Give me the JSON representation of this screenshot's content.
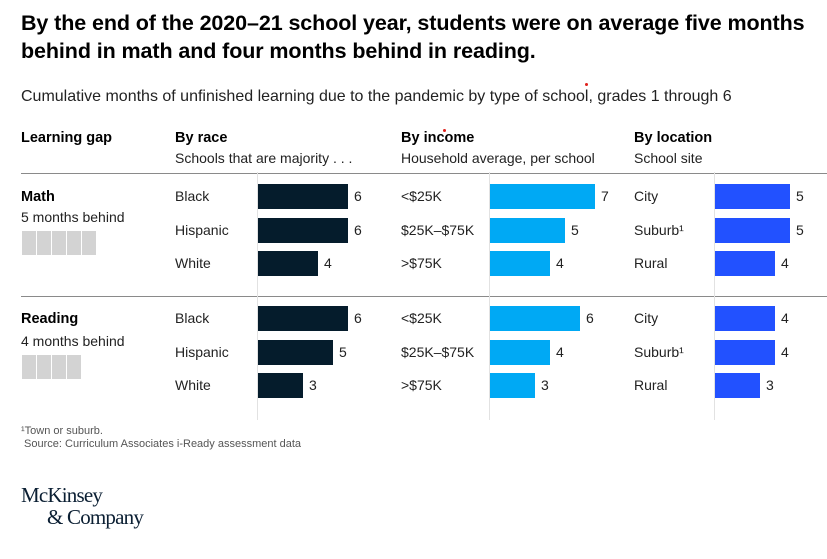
{
  "title": "By the end of the 2020–21 school year, students were on average five months behind in math and four months behind in reading.",
  "subtitle": "Cumulative months of unfinished learning due to the pandemic by type of school, grades 1 through 6",
  "columns": {
    "gap": {
      "header": "Learning gap"
    },
    "race": {
      "header": "By race",
      "subheader": "Schools that are majority . . ."
    },
    "income": {
      "header": "By income",
      "subheader": "Household average, per school"
    },
    "location": {
      "header": "By location",
      "subheader": "School site"
    }
  },
  "colors": {
    "race": "#051c2c",
    "income": "#00a9f4",
    "location": "#2251ff",
    "gap_square": "#d3d3d3"
  },
  "chart_data": {
    "type": "bar",
    "orientation": "horizontal",
    "title": "By the end of the 2020–21 school year, students were on average five months behind in math and four months behind in reading.",
    "subtitle": "Cumulative months of unfinished learning due to the pandemic by type of school, grades 1 through 6",
    "unit": "months",
    "xlim": [
      0,
      7
    ],
    "grid": false,
    "panels": [
      {
        "name": "Math",
        "summary": "5 months behind",
        "summary_value": 5,
        "groups": [
          {
            "name": "By race",
            "categories": [
              "Black",
              "Hispanic",
              "White"
            ],
            "values": [
              6,
              6,
              4
            ]
          },
          {
            "name": "By income",
            "categories": [
              "<$25K",
              "$25K–$75K",
              ">$75K"
            ],
            "values": [
              7,
              5,
              4
            ]
          },
          {
            "name": "By location",
            "categories": [
              "City",
              "Suburb¹",
              "Rural"
            ],
            "values": [
              5,
              5,
              4
            ]
          }
        ]
      },
      {
        "name": "Reading",
        "summary": "4 months behind",
        "summary_value": 4,
        "groups": [
          {
            "name": "By race",
            "categories": [
              "Black",
              "Hispanic",
              "White"
            ],
            "values": [
              6,
              5,
              3
            ]
          },
          {
            "name": "By income",
            "categories": [
              "<$25K",
              "$25K–$75K",
              ">$75K"
            ],
            "values": [
              6,
              4,
              3
            ]
          },
          {
            "name": "By location",
            "categories": [
              "City",
              "Suburb¹",
              "Rural"
            ],
            "values": [
              4,
              4,
              3
            ]
          }
        ]
      }
    ]
  },
  "footnotes": {
    "note": "¹Town or suburb.",
    "source": " Source: Curriculum Associates i-Ready assessment data"
  },
  "logo": {
    "line1": "McKinsey",
    "line2": "& Company"
  }
}
